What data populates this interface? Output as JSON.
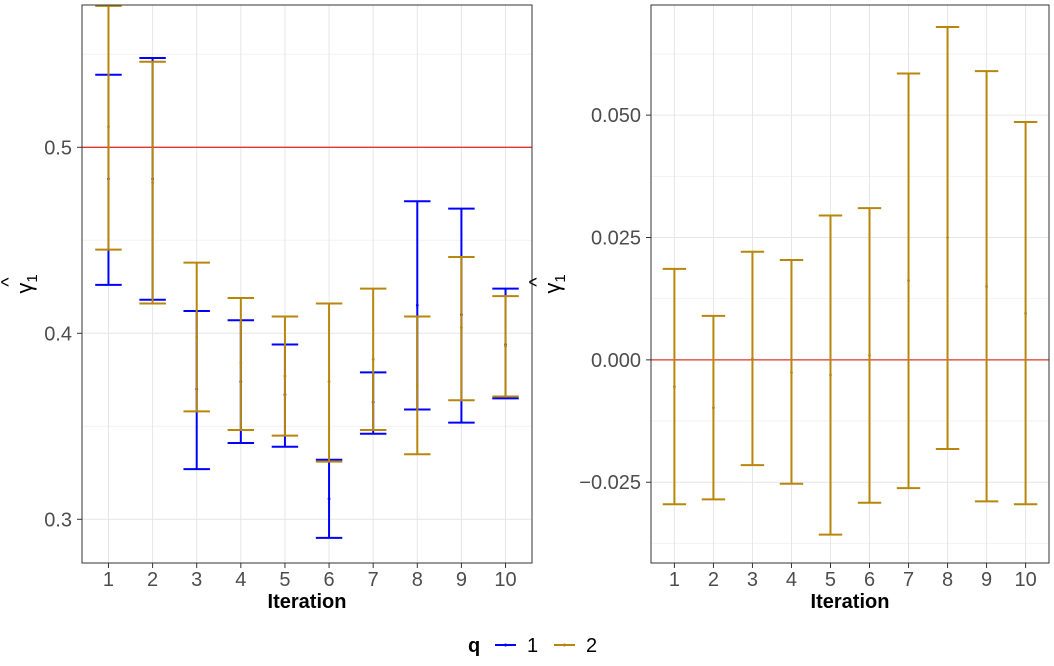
{
  "legend": {
    "title": "q",
    "entries": [
      {
        "label": "1",
        "color": "#0000FF"
      },
      {
        "label": "2",
        "color": "#B8860B"
      }
    ]
  },
  "colors": {
    "reference_line": "#E0342C",
    "grid_major": "#e6e6e6",
    "grid_minor": "#f2f2f2",
    "panel_border": "#333333",
    "tick_text": "#4d4d4d"
  },
  "chart_data": [
    {
      "type": "errorbar",
      "xlabel": "Iteration",
      "ylabel": "γ̂1",
      "ylabel_parts": {
        "symbol": "γ",
        "hat": "^",
        "sub": "1"
      },
      "xlim": [
        0.4,
        10.6
      ],
      "ylim": [
        0.2765,
        0.5765
      ],
      "xticks": [
        1,
        2,
        3,
        4,
        5,
        6,
        7,
        8,
        9,
        10
      ],
      "xtick_labels": [
        "1",
        "2",
        "3",
        "4",
        "5",
        "6",
        "7",
        "8",
        "9",
        "10"
      ],
      "yticks": [
        0.3,
        0.4,
        0.5
      ],
      "ytick_labels": [
        "0.3",
        "0.4",
        "0.5"
      ],
      "grid": true,
      "reference_line": 0.5,
      "series": [
        {
          "name": "1",
          "color": "#0000FF",
          "x": [
            1,
            2,
            3,
            4,
            5,
            6,
            7,
            8,
            9,
            10
          ],
          "lower": [
            0.426,
            0.418,
            0.327,
            0.341,
            0.339,
            0.29,
            0.346,
            0.359,
            0.352,
            0.365
          ],
          "upper": [
            0.539,
            0.548,
            0.412,
            0.407,
            0.394,
            0.332,
            0.379,
            0.471,
            0.467,
            0.424
          ],
          "estimate": [
            0.483,
            0.483,
            0.37,
            0.374,
            0.367,
            0.311,
            0.363,
            0.415,
            0.41,
            0.394
          ]
        },
        {
          "name": "2",
          "color": "#B8860B",
          "x": [
            1,
            2,
            3,
            4,
            5,
            6,
            7,
            8,
            9,
            10
          ],
          "lower": [
            0.445,
            0.416,
            0.358,
            0.348,
            0.345,
            0.331,
            0.348,
            0.335,
            0.364,
            0.366
          ],
          "upper": [
            0.576,
            0.546,
            0.438,
            0.419,
            0.409,
            0.416,
            0.424,
            0.409,
            0.441,
            0.42
          ],
          "estimate": [
            0.511,
            0.481,
            0.398,
            0.384,
            0.377,
            0.374,
            0.386,
            0.372,
            0.403,
            0.393
          ]
        }
      ]
    },
    {
      "type": "errorbar",
      "xlabel": "Iteration",
      "ylabel": "γ̂1",
      "ylabel_parts": {
        "symbol": "γ",
        "hat": "^",
        "sub": "1"
      },
      "xlim": [
        0.4,
        10.6
      ],
      "ylim": [
        -0.0415,
        0.0725
      ],
      "xticks": [
        1,
        2,
        3,
        4,
        5,
        6,
        7,
        8,
        9,
        10
      ],
      "xtick_labels": [
        "1",
        "2",
        "3",
        "4",
        "5",
        "6",
        "7",
        "8",
        "9",
        "10"
      ],
      "yticks": [
        -0.025,
        0.0,
        0.025,
        0.05
      ],
      "ytick_labels": [
        "−0.025",
        "0.000",
        "0.025",
        "0.050"
      ],
      "grid": true,
      "reference_line": 0.0,
      "series": [
        {
          "name": "2",
          "color": "#B8860B",
          "x": [
            1,
            2,
            3,
            4,
            5,
            6,
            7,
            8,
            9,
            10
          ],
          "lower": [
            -0.0295,
            -0.0285,
            -0.0215,
            -0.0253,
            -0.0357,
            -0.0292,
            -0.0262,
            -0.0182,
            -0.0289,
            -0.0295
          ],
          "upper": [
            0.0186,
            0.009,
            0.0221,
            0.0204,
            0.0295,
            0.031,
            0.0585,
            0.068,
            0.059,
            0.0486
          ],
          "estimate": [
            -0.0055,
            -0.0098,
            0.0002,
            -0.0026,
            -0.0031,
            0.0009,
            0.0162,
            0.025,
            0.015,
            0.0095
          ]
        }
      ]
    }
  ]
}
